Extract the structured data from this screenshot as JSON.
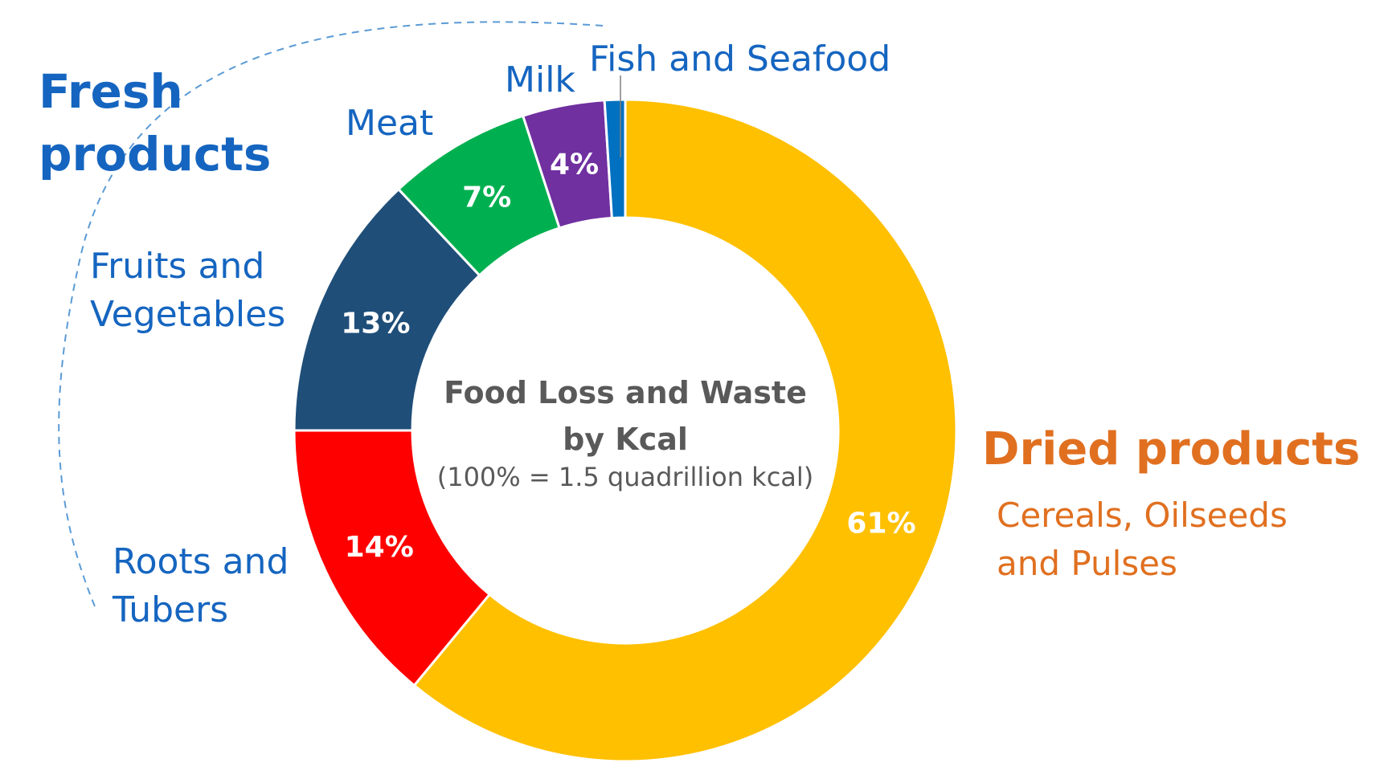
{
  "chart_data": {
    "type": "pie",
    "center_title": [
      "Food Loss and Waste",
      "by Kcal"
    ],
    "center_subtitle": "(100% = 1.5 quadrillion kcal)",
    "slices": [
      {
        "label": "Cereals, Oilseeds and Pulses",
        "value": 61,
        "value_label": "61%",
        "color": "#ffc000"
      },
      {
        "label": "Roots and Tubers",
        "value": 14,
        "value_label": "14%",
        "color": "#ff0000"
      },
      {
        "label": "Fruits and Vegetables",
        "value": 13,
        "value_label": "13%",
        "color": "#1f4e79"
      },
      {
        "label": "Meat",
        "value": 7,
        "value_label": "7%",
        "color": "#00b050"
      },
      {
        "label": "Milk",
        "value": 4,
        "value_label": "4%",
        "color": "#7030a0"
      },
      {
        "label": "Fish and Seafood",
        "value": 1,
        "value_label": "",
        "color": "#0070c0"
      }
    ],
    "category_labels": {
      "roots": [
        "Roots and",
        "Tubers"
      ],
      "fruits": [
        "Fruits and",
        "Vegetables"
      ],
      "meat": "Meat",
      "milk": "Milk",
      "fish": "Fish and Seafood"
    },
    "groups": {
      "fresh": [
        "Fresh",
        "products"
      ],
      "dried": "Dried products",
      "dried_sub": [
        "Cereals, Oilseeds",
        "and Pulses"
      ]
    },
    "colors": {
      "fresh_text": "#1565c0",
      "dried_text": "#e07020",
      "center_text": "#595959"
    }
  }
}
